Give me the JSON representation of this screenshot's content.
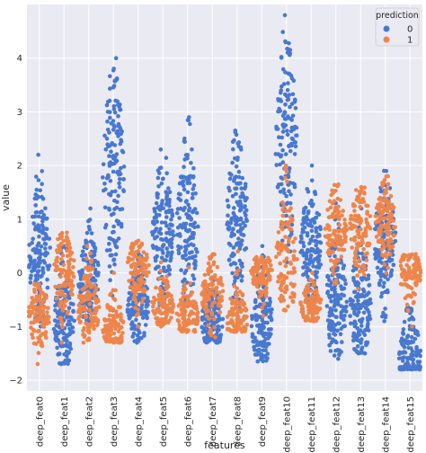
{
  "chart_data": {
    "type": "swarm",
    "title": "",
    "xlabel": "features",
    "ylabel": "value",
    "ylim": [
      -2.2,
      5.0
    ],
    "yticks": [
      -2,
      -1,
      0,
      1,
      2,
      3,
      4
    ],
    "grid": true,
    "background": "#eaeaf2",
    "legend": {
      "title": "prediction",
      "placement": "top-right",
      "entries": [
        {
          "label": "0",
          "color": "#4878d0"
        },
        {
          "label": "1",
          "color": "#ee854a"
        }
      ]
    },
    "categories": [
      "deep_feat0",
      "deep_feat1",
      "deep_feat2",
      "deep_feat3",
      "deep_feat4",
      "deep_feat5",
      "deep_feat6",
      "deep_feat7",
      "deep_feat8",
      "deep_feat9",
      "deep_feat10",
      "deep_feat11",
      "deep_feat12",
      "deep_feat13",
      "deep_feat14",
      "deep_feat15"
    ],
    "series": [
      {
        "name": "0",
        "color": "#4878d0",
        "median": [
          0.35,
          -0.9,
          -0.15,
          1.8,
          -0.6,
          0.8,
          0.9,
          -0.9,
          1.0,
          -0.9,
          2.4,
          0.5,
          -0.5,
          -0.6,
          0.6,
          -1.6
        ],
        "min": [
          -1.0,
          -1.7,
          -0.9,
          -0.7,
          -1.3,
          -0.6,
          -0.6,
          -1.3,
          -0.8,
          -1.65,
          0.2,
          -0.6,
          -1.6,
          -1.5,
          -0.9,
          -1.8
        ],
        "max": [
          2.2,
          0.5,
          1.2,
          4.0,
          0.5,
          2.3,
          2.9,
          0.3,
          2.65,
          0.5,
          4.8,
          2.0,
          1.3,
          1.2,
          1.9,
          0.3
        ]
      },
      {
        "name": "1",
        "color": "#ee854a",
        "median": [
          -0.8,
          0.0,
          -0.7,
          -1.0,
          0.1,
          -0.6,
          -0.8,
          -0.4,
          -0.9,
          0.0,
          0.2,
          -0.6,
          0.8,
          0.8,
          0.9,
          0.0
        ],
        "min": [
          -1.7,
          -1.3,
          -1.3,
          -1.3,
          -1.0,
          -1.0,
          -1.1,
          -1.2,
          -1.1,
          -0.8,
          -0.7,
          -0.9,
          -0.2,
          -0.3,
          0.0,
          -1.0
        ],
        "max": [
          -0.2,
          0.75,
          0.5,
          0.0,
          0.6,
          0.2,
          0.1,
          0.35,
          0.4,
          0.3,
          2.0,
          0.0,
          1.65,
          1.6,
          1.8,
          0.35
        ]
      }
    ]
  }
}
